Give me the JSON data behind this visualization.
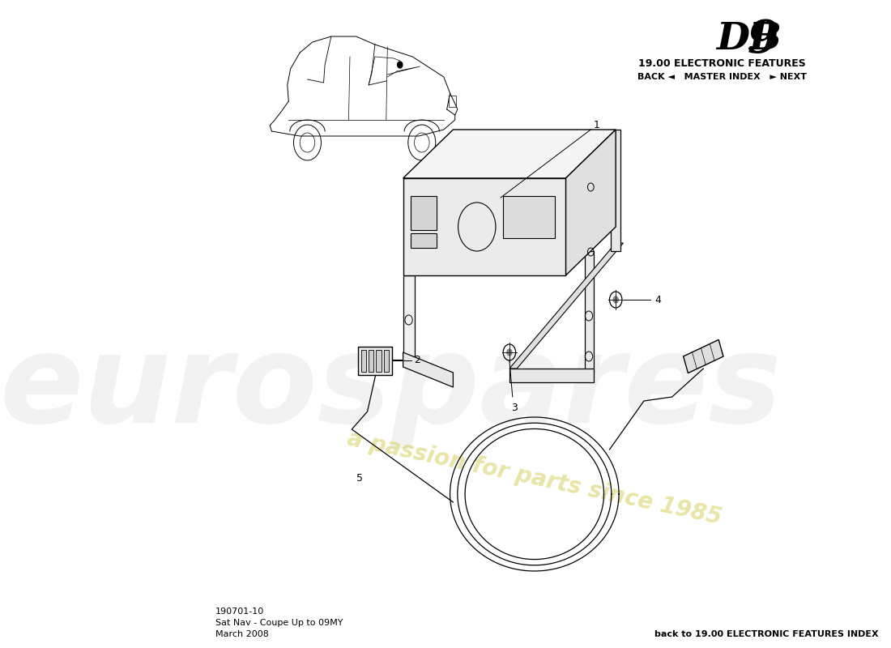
{
  "title_db": "DB",
  "title_9": "9",
  "subtitle": "19.00 ELECTRONIC FEATURES",
  "nav_text": "BACK ◄   MASTER INDEX   ► NEXT",
  "bottom_left_line1": "190701-10",
  "bottom_left_line2": "Sat Nav - Coupe Up to 09MY",
  "bottom_left_line3": "March 2008",
  "bottom_right": "back to 19.00 ELECTRONIC FEATURES INDEX",
  "watermark_text": "a passion for parts since 1985",
  "bg_color": "#ffffff",
  "line_color": "#000000",
  "watermark_color": "#d4cc50",
  "watermark_alpha": 0.5,
  "logo_color": "#cccccc",
  "logo_alpha": 0.35
}
